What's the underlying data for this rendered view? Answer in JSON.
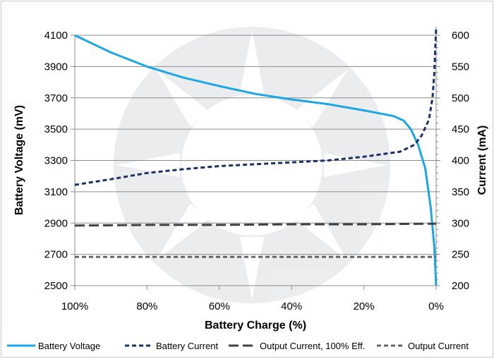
{
  "chart_data": {
    "type": "line",
    "xlabel": "Battery Charge (%)",
    "ylabel_left": "Battery Voltage (mV)",
    "ylabel_right": "Current (mA)",
    "x_ticks": [
      "100%",
      "80%",
      "60%",
      "40%",
      "20%",
      "0%"
    ],
    "x_tick_values": [
      100,
      80,
      60,
      40,
      20,
      0
    ],
    "xlim": [
      100,
      0
    ],
    "y_left_ticks": [
      "4100",
      "3900",
      "3700",
      "3500",
      "3300",
      "3100",
      "2900",
      "2700",
      "2500"
    ],
    "y_left_tick_values": [
      4100,
      3900,
      3700,
      3500,
      3300,
      3100,
      2900,
      2700,
      2500
    ],
    "ylim_left": [
      2500,
      4100
    ],
    "y_right_ticks": [
      "600",
      "550",
      "500",
      "450",
      "400",
      "350",
      "300",
      "250",
      "200"
    ],
    "y_right_tick_values": [
      600,
      550,
      500,
      450,
      400,
      350,
      300,
      250,
      200
    ],
    "ylim_right": [
      200,
      600
    ],
    "grid": "horizontal",
    "series": [
      {
        "name": "Battery Voltage",
        "axis": "left",
        "color": "#1aa7e4",
        "dash": "solid",
        "points": [
          [
            100,
            4100
          ],
          [
            90,
            3990
          ],
          [
            80,
            3900
          ],
          [
            70,
            3830
          ],
          [
            60,
            3775
          ],
          [
            50,
            3725
          ],
          [
            40,
            3690
          ],
          [
            30,
            3660
          ],
          [
            20,
            3620
          ],
          [
            12,
            3585
          ],
          [
            9,
            3555
          ],
          [
            7,
            3500
          ],
          [
            5,
            3400
          ],
          [
            3,
            3250
          ],
          [
            1.5,
            3000
          ],
          [
            0.5,
            2750
          ],
          [
            0,
            2500
          ]
        ]
      },
      {
        "name": "Battery Current",
        "axis": "right",
        "color": "#1b2f6b",
        "dash": "dashed",
        "points": [
          [
            100,
            361
          ],
          [
            90,
            370
          ],
          [
            80,
            380
          ],
          [
            70,
            386
          ],
          [
            60,
            391
          ],
          [
            50,
            394
          ],
          [
            40,
            397
          ],
          [
            30,
            400
          ],
          [
            20,
            406
          ],
          [
            10,
            414
          ],
          [
            6,
            425
          ],
          [
            4,
            440
          ],
          [
            2,
            465
          ],
          [
            1,
            500
          ],
          [
            0.5,
            540
          ],
          [
            0,
            612
          ]
        ]
      },
      {
        "name": "Output Current, 100% Eff.",
        "axis": "right",
        "color": "#404040",
        "dash": "longdash",
        "points": [
          [
            100,
            296
          ],
          [
            80,
            297
          ],
          [
            60,
            297
          ],
          [
            40,
            298
          ],
          [
            20,
            298
          ],
          [
            0,
            299
          ]
        ]
      },
      {
        "name": "Output Current",
        "axis": "right",
        "color": "#666666",
        "dash": "dashed",
        "points": [
          [
            100,
            246
          ],
          [
            80,
            246
          ],
          [
            60,
            246
          ],
          [
            40,
            246
          ],
          [
            20,
            246
          ],
          [
            0,
            246
          ]
        ]
      }
    ],
    "legend_position": "bottom"
  }
}
